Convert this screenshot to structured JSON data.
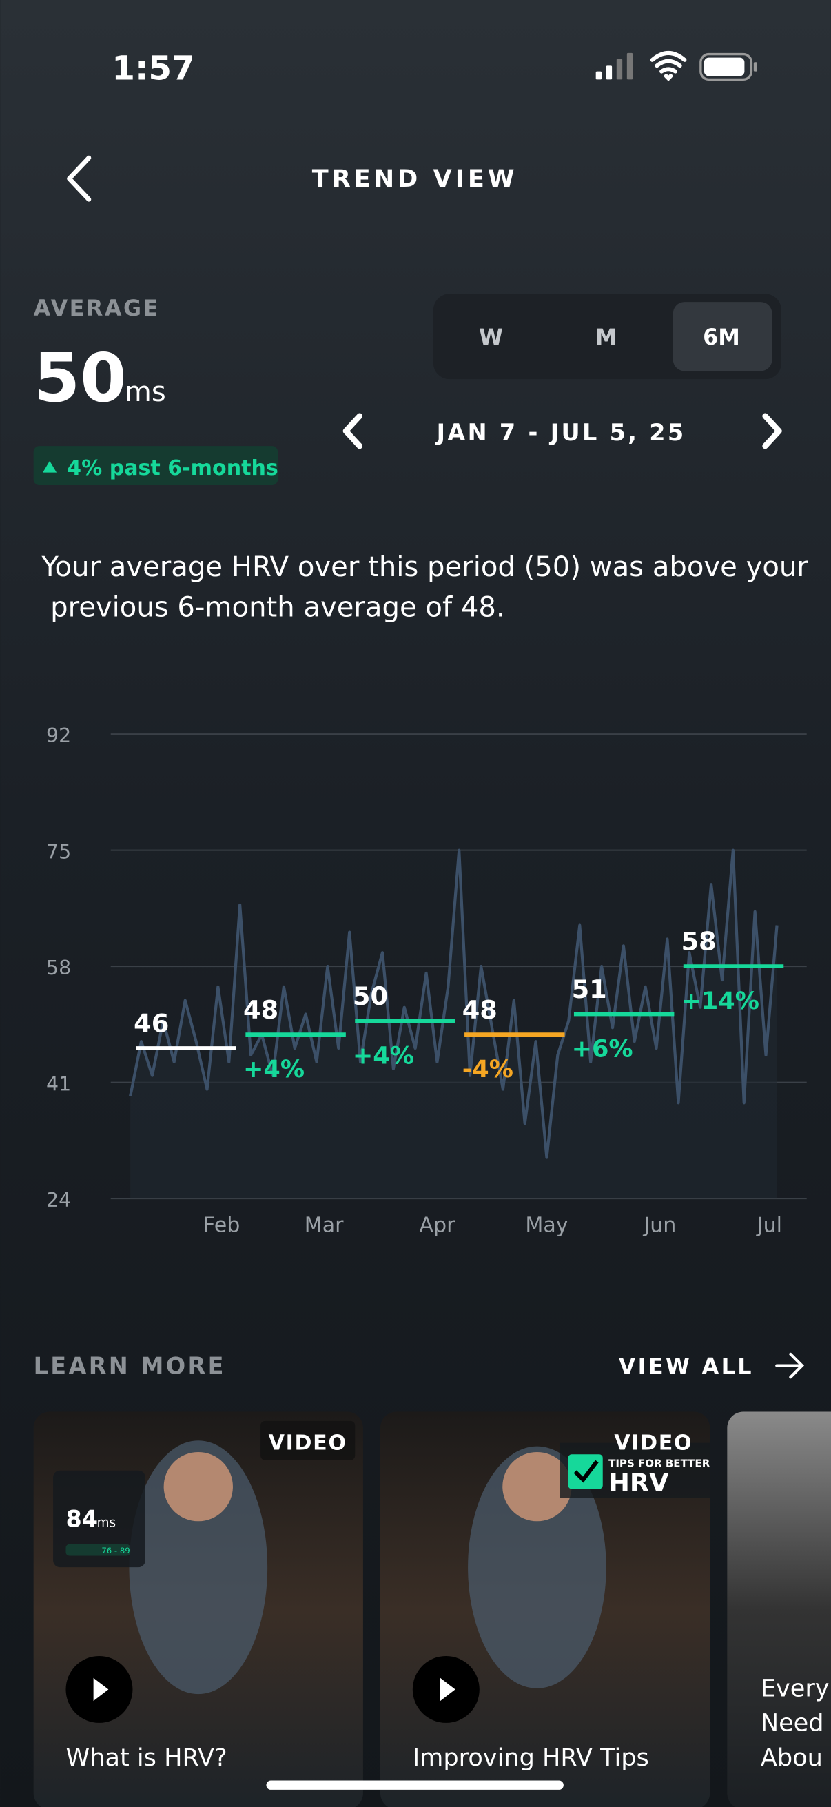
{
  "status_bar": {
    "time": "1:57"
  },
  "header": {
    "title": "TREND VIEW"
  },
  "summary": {
    "label": "AVERAGE",
    "value": 50,
    "unit": "ms",
    "change": "4% past 6-months"
  },
  "range_tabs": {
    "options": [
      "W",
      "M",
      "6M"
    ],
    "selected_index": 2
  },
  "date_range": "JAN 7 - JUL 5, 25",
  "description": "Your average HRV over this period (50) was above your previous 6-month average of 48.",
  "chart_data": {
    "type": "line",
    "ylim": [
      24,
      92
    ],
    "yticks": [
      24,
      41,
      58,
      75,
      92
    ],
    "xlim": [
      0,
      179
    ],
    "xticks": [
      {
        "value": 25,
        "label": "Feb"
      },
      {
        "value": 53,
        "label": "Mar"
      },
      {
        "value": 84,
        "label": "Apr"
      },
      {
        "value": 114,
        "label": "May"
      },
      {
        "value": 145,
        "label": "Jun"
      },
      {
        "value": 175,
        "label": "Jul"
      }
    ],
    "grid": true,
    "x": [
      0,
      3,
      6,
      9,
      12,
      15,
      18,
      21,
      24,
      27,
      30,
      33,
      36,
      39,
      42,
      45,
      48,
      51,
      54,
      57,
      60,
      63,
      66,
      69,
      72,
      75,
      78,
      81,
      84,
      87,
      90,
      93,
      96,
      99,
      102,
      105,
      108,
      111,
      114,
      117,
      120,
      123,
      126,
      129,
      132,
      135,
      138,
      141,
      144,
      147,
      150,
      153,
      156,
      159,
      162,
      165,
      168,
      171,
      174,
      177
    ],
    "series": [
      {
        "color": "#3c5068",
        "values": [
          39,
          47,
          42,
          50,
          44,
          53,
          47,
          40,
          55,
          44,
          67,
          45,
          48,
          42,
          55,
          46,
          51,
          44,
          58,
          46,
          63,
          44,
          54,
          60,
          43,
          52,
          46,
          57,
          44,
          55,
          75,
          42,
          58,
          49,
          40,
          53,
          35,
          47,
          30,
          45,
          50,
          64,
          44,
          58,
          49,
          61,
          47,
          55,
          46,
          62,
          38,
          60,
          52,
          70,
          56,
          75,
          38,
          66,
          45,
          64
        ]
      }
    ],
    "period_averages": [
      {
        "value": 46,
        "color": "#ffffff"
      },
      {
        "value": 48,
        "change": "+4%",
        "color": "#16d89a"
      },
      {
        "value": 50,
        "change": "+4%",
        "color": "#16d89a"
      },
      {
        "value": 48,
        "change": "-4%",
        "color": "#f5a623"
      },
      {
        "value": 51,
        "change": "+6%",
        "color": "#16d89a"
      },
      {
        "value": 58,
        "change": "+14%",
        "color": "#16d89a"
      }
    ]
  },
  "learn_more": {
    "title": "LEARN MORE",
    "view_all": "VIEW ALL",
    "cards": [
      {
        "badge": "VIDEO",
        "title": "What is HRV?",
        "overlay_value": "84",
        "overlay_unit": "ms",
        "overlay_range": "76 - 89"
      },
      {
        "badge": "VIDEO",
        "title": "Improving HRV Tips",
        "overlay_small": "TIPS FOR BETTER",
        "overlay_big": "HRV"
      },
      {
        "lines": [
          "Every",
          "Need",
          "Abou"
        ]
      }
    ]
  }
}
